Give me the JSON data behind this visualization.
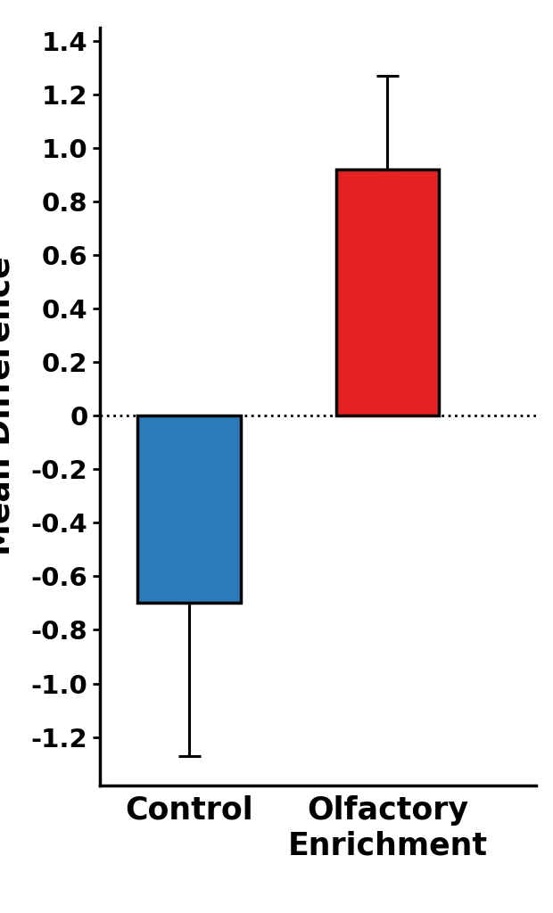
{
  "categories": [
    "Control",
    "Olfactory\nEnrichment"
  ],
  "values": [
    -0.7,
    0.92
  ],
  "errors_lower": [
    0.57,
    0.0
  ],
  "errors_upper": [
    0.0,
    0.35
  ],
  "bar_colors": [
    "#2B7BBA",
    "#E52222"
  ],
  "bar_edge_color": "#000000",
  "bar_edge_width": 2.5,
  "bar_width": 0.52,
  "ylim": [
    -1.38,
    1.45
  ],
  "yticks": [
    -1.2,
    -1.0,
    -0.8,
    -0.6,
    -0.4,
    -0.2,
    0.0,
    0.2,
    0.4,
    0.6,
    0.8,
    1.0,
    1.2,
    1.4
  ],
  "hline_y": 0,
  "hline_style": "dotted",
  "hline_color": "#000000",
  "hline_linewidth": 2.0,
  "tick_fontsize": 21,
  "ylabel_fontsize": 26,
  "xlabel_fontsize": 25,
  "background_color": "#ffffff",
  "spine_linewidth": 2.5,
  "error_capsize": 9,
  "error_linewidth": 2.2,
  "bar_positions": [
    1,
    2
  ]
}
